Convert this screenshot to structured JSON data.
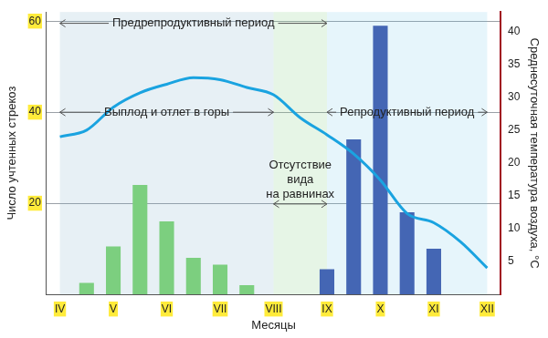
{
  "chart_data": {
    "type": "bar",
    "categories": [
      "IV",
      null,
      "V",
      null,
      "VI",
      null,
      "VII",
      null,
      "VIII",
      null,
      "IX",
      null,
      "X",
      null,
      "XI",
      null,
      "XII"
    ],
    "series": [
      {
        "type": "bar",
        "values": [
          null,
          2.5,
          10.5,
          24,
          16,
          8,
          6.5,
          2,
          null,
          null,
          5.5,
          34,
          59,
          18,
          10,
          null,
          null
        ],
        "colors": [
          "#7ccf7f",
          "#7ccf7f",
          "#7ccf7f",
          "#7ccf7f",
          "#7ccf7f",
          "#7ccf7f",
          "#7ccf7f",
          "#7ccf7f",
          "#7ccf7f",
          "#7ccf7f",
          "#4466b4",
          "#4466b4",
          "#4466b4",
          "#4466b4",
          "#4466b4",
          "#4466b4",
          "#4466b4"
        ]
      },
      {
        "type": "line",
        "axis": "y2",
        "color": "#1aa3e0",
        "values": [
          24,
          25,
          28.5,
          30.7,
          32,
          33,
          32.7,
          31.5,
          30.4,
          26.9,
          24.3,
          21.4,
          17.4,
          12.3,
          10.9,
          8,
          4
        ]
      }
    ],
    "xlabel": "Месяцы",
    "ylabel": "Число учтенных стрекоз",
    "y2label": "Среднесуточная температура воздуха, °С",
    "ylim": [
      0,
      62
    ],
    "yticks": [
      20,
      40,
      60
    ],
    "y2lim": [
      0,
      43
    ],
    "y2ticks": [
      5,
      10,
      15,
      20,
      25,
      30,
      35,
      40
    ],
    "grid": true,
    "annotations": [
      {
        "text": [
          "Предрепродуктивный период"
        ],
        "from": "IV",
        "to": "IX"
      },
      {
        "text": [
          "Выплод и отлет в горы"
        ],
        "from": "IV",
        "to": "VIII"
      },
      {
        "text": [
          "Репродуктивный период"
        ],
        "from": "IX",
        "to": "XII"
      },
      {
        "text": [
          "Отсутствие",
          "вида",
          "на равнинах"
        ],
        "from": "VIII",
        "to": "IX"
      }
    ]
  }
}
